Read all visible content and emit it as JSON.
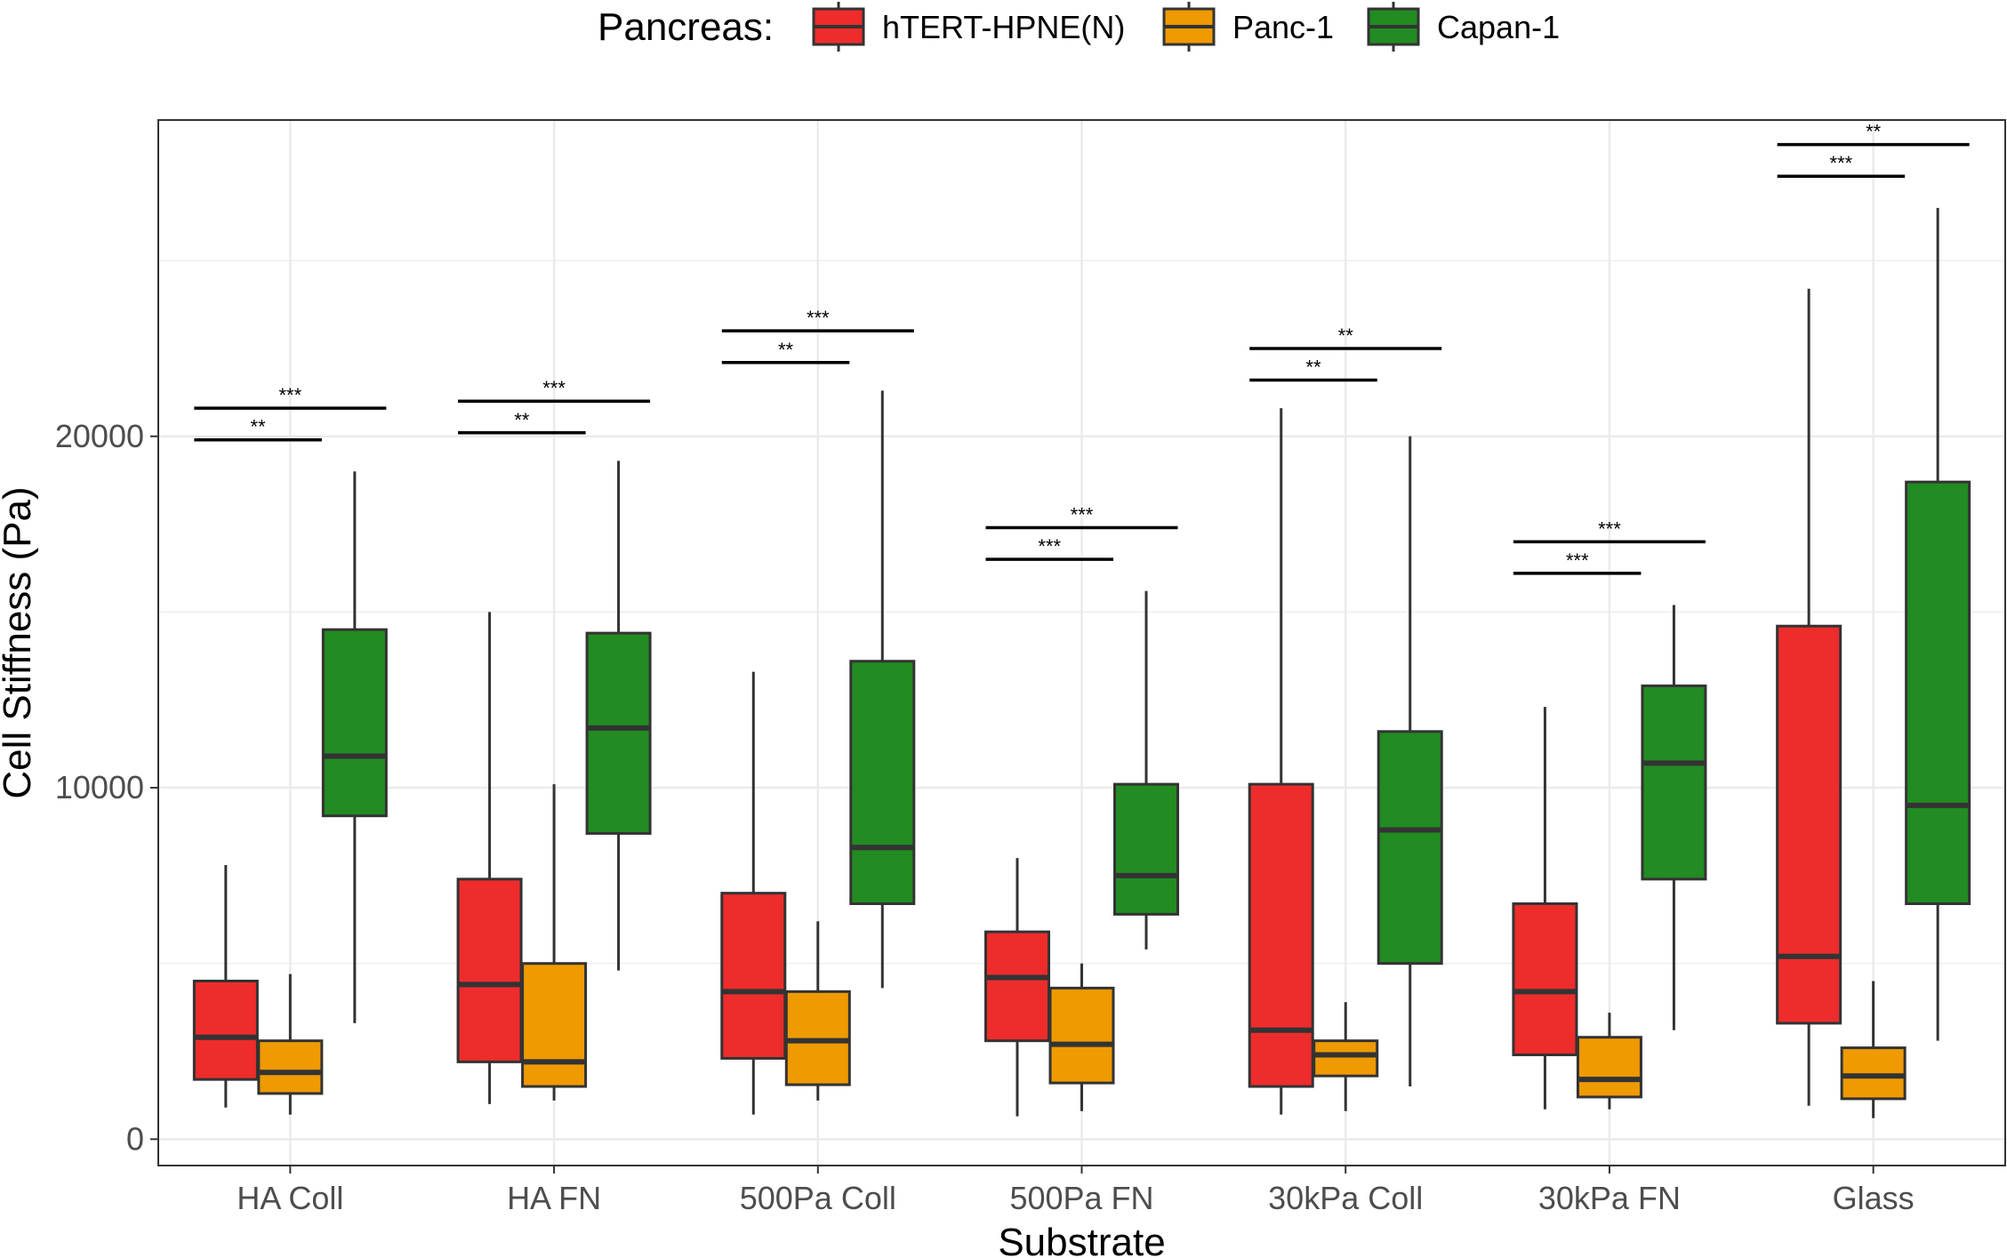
{
  "chart_data": {
    "type": "boxplot",
    "title": "",
    "xlabel": "Substrate",
    "ylabel": "Cell Stiffness (Pa)",
    "ylim": [
      -750,
      29000
    ],
    "yticks": [
      0,
      10000,
      20000
    ],
    "ytick_labels": [
      "0",
      "10000",
      "20000"
    ],
    "grid": true,
    "legend": {
      "title": "Pancreas:",
      "position": "top"
    },
    "categories": [
      "HA Coll",
      "HA FN",
      "500Pa Coll",
      "500Pa FN",
      "30kPa Coll",
      "30kPa FN",
      "Glass"
    ],
    "series": [
      {
        "name": "hTERT-HPNE(N)",
        "color": "#ee2c2c",
        "boxes": [
          {
            "low": 900,
            "q1": 1700,
            "median": 2900,
            "q3": 4500,
            "high": 7800
          },
          {
            "low": 1000,
            "q1": 2200,
            "median": 4400,
            "q3": 7400,
            "high": 15000
          },
          {
            "low": 700,
            "q1": 2300,
            "median": 4200,
            "q3": 7000,
            "high": 13300
          },
          {
            "low": 650,
            "q1": 2800,
            "median": 4600,
            "q3": 5900,
            "high": 8000
          },
          {
            "low": 700,
            "q1": 1500,
            "median": 3100,
            "q3": 10100,
            "high": 20800
          },
          {
            "low": 850,
            "q1": 2400,
            "median": 4200,
            "q3": 6700,
            "high": 12300
          },
          {
            "low": 950,
            "q1": 3300,
            "median": 5200,
            "q3": 14600,
            "high": 24200
          }
        ]
      },
      {
        "name": "Panc-1",
        "color": "#ee9a00",
        "boxes": [
          {
            "low": 700,
            "q1": 1300,
            "median": 1900,
            "q3": 2800,
            "high": 4700
          },
          {
            "low": 1100,
            "q1": 1500,
            "median": 2200,
            "q3": 5000,
            "high": 10100
          },
          {
            "low": 1100,
            "q1": 1550,
            "median": 2800,
            "q3": 4200,
            "high": 6200
          },
          {
            "low": 800,
            "q1": 1600,
            "median": 2700,
            "q3": 4300,
            "high": 5000
          },
          {
            "low": 800,
            "q1": 1800,
            "median": 2400,
            "q3": 2800,
            "high": 3900
          },
          {
            "low": 850,
            "q1": 1200,
            "median": 1700,
            "q3": 2900,
            "high": 3600
          },
          {
            "low": 600,
            "q1": 1150,
            "median": 1800,
            "q3": 2600,
            "high": 4500
          }
        ]
      },
      {
        "name": "Capan-1",
        "color": "#228b22",
        "boxes": [
          {
            "low": 3300,
            "q1": 9200,
            "median": 10900,
            "q3": 14500,
            "high": 19000
          },
          {
            "low": 4800,
            "q1": 8700,
            "median": 11700,
            "q3": 14400,
            "high": 19300
          },
          {
            "low": 4300,
            "q1": 6700,
            "median": 8300,
            "q3": 13600,
            "high": 21300
          },
          {
            "low": 5400,
            "q1": 6400,
            "median": 7500,
            "q3": 10100,
            "high": 15600
          },
          {
            "low": 1500,
            "q1": 5000,
            "median": 8800,
            "q3": 11600,
            "high": 20000
          },
          {
            "low": 3100,
            "q1": 7400,
            "median": 10700,
            "q3": 12900,
            "high": 15200
          },
          {
            "low": 2800,
            "q1": 6700,
            "median": 9500,
            "q3": 18700,
            "high": 26500
          }
        ]
      }
    ],
    "annotations": [
      {
        "category": 0,
        "from": 0,
        "to": 1,
        "y": 19900,
        "label": "**"
      },
      {
        "category": 0,
        "from": 0,
        "to": 2,
        "y": 20800,
        "label": "***"
      },
      {
        "category": 1,
        "from": 0,
        "to": 1,
        "y": 20100,
        "label": "**"
      },
      {
        "category": 1,
        "from": 0,
        "to": 2,
        "y": 21000,
        "label": "***"
      },
      {
        "category": 2,
        "from": 0,
        "to": 1,
        "y": 22100,
        "label": "**"
      },
      {
        "category": 2,
        "from": 0,
        "to": 2,
        "y": 23000,
        "label": "***"
      },
      {
        "category": 3,
        "from": 0,
        "to": 1,
        "y": 16500,
        "label": "***"
      },
      {
        "category": 3,
        "from": 0,
        "to": 2,
        "y": 17400,
        "label": "***"
      },
      {
        "category": 4,
        "from": 0,
        "to": 1,
        "y": 21600,
        "label": "**"
      },
      {
        "category": 4,
        "from": 0,
        "to": 2,
        "y": 22500,
        "label": "**"
      },
      {
        "category": 5,
        "from": 0,
        "to": 1,
        "y": 16100,
        "label": "***"
      },
      {
        "category": 5,
        "from": 0,
        "to": 2,
        "y": 17000,
        "label": "***"
      },
      {
        "category": 6,
        "from": 0,
        "to": 1,
        "y": 27400,
        "label": "***"
      },
      {
        "category": 6,
        "from": 0,
        "to": 2,
        "y": 28300,
        "label": "**"
      }
    ]
  }
}
